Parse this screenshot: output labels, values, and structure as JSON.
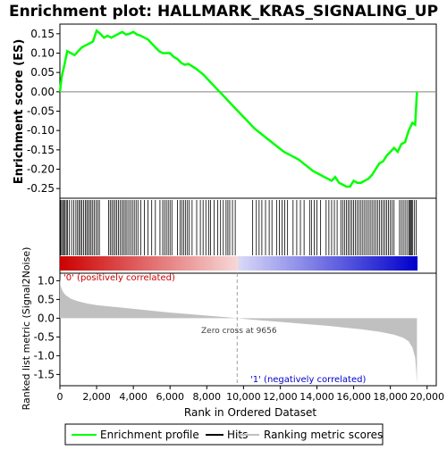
{
  "chart_data": {
    "type": "line",
    "title": "Enrichment plot: HALLMARK_KRAS_SIGNALING_UP",
    "panels": {
      "es": {
        "ylabel": "Enrichment score (ES)",
        "ylim": [
          -0.275,
          0.175
        ],
        "yticks": [
          "0.15",
          "0.10",
          "0.05",
          "0.00",
          "-0.05",
          "-0.10",
          "-0.15",
          "-0.20",
          "-0.25"
        ],
        "ytick_values": [
          0.15,
          0.1,
          0.05,
          0.0,
          -0.05,
          -0.1,
          -0.15,
          -0.2,
          -0.25
        ],
        "series": {
          "name": "Enrichment profile",
          "color": "#00ff00",
          "x": [
            0,
            100,
            250,
            400,
            600,
            800,
            1000,
            1200,
            1400,
            1600,
            1800,
            2000,
            2200,
            2400,
            2600,
            2800,
            3000,
            3200,
            3400,
            3600,
            3800,
            4000,
            4200,
            4400,
            4600,
            4800,
            5000,
            5200,
            5400,
            5600,
            5800,
            6000,
            6200,
            6400,
            6600,
            6800,
            7000,
            7400,
            7800,
            8200,
            8600,
            9000,
            9400,
            9800,
            10200,
            10600,
            11000,
            11400,
            11800,
            12200,
            12600,
            13000,
            13400,
            13800,
            14000,
            14200,
            14400,
            14600,
            14800,
            15000,
            15200,
            15400,
            15600,
            15800,
            16000,
            16200,
            16400,
            16600,
            16800,
            17000,
            17200,
            17400,
            17600,
            17800,
            18000,
            18200,
            18400,
            18600,
            18800,
            19000,
            19200,
            19350,
            19450
          ],
          "y": [
            0.0,
            0.04,
            0.07,
            0.105,
            0.1,
            0.095,
            0.105,
            0.115,
            0.12,
            0.125,
            0.13,
            0.158,
            0.15,
            0.14,
            0.145,
            0.14,
            0.145,
            0.15,
            0.155,
            0.148,
            0.15,
            0.155,
            0.148,
            0.145,
            0.14,
            0.135,
            0.125,
            0.115,
            0.105,
            0.1,
            0.1,
            0.1,
            0.09,
            0.085,
            0.075,
            0.07,
            0.072,
            0.06,
            0.045,
            0.025,
            0.005,
            -0.015,
            -0.035,
            -0.055,
            -0.075,
            -0.095,
            -0.11,
            -0.125,
            -0.14,
            -0.155,
            -0.165,
            -0.175,
            -0.19,
            -0.205,
            -0.21,
            -0.215,
            -0.22,
            -0.225,
            -0.23,
            -0.22,
            -0.235,
            -0.24,
            -0.245,
            -0.245,
            -0.23,
            -0.235,
            -0.235,
            -0.23,
            -0.225,
            -0.215,
            -0.2,
            -0.185,
            -0.18,
            -0.165,
            -0.155,
            -0.145,
            -0.155,
            -0.135,
            -0.13,
            -0.1,
            -0.08,
            -0.085,
            0.0
          ]
        }
      },
      "hits": {
        "name": "Hits",
        "positions": [
          30,
          90,
          150,
          210,
          280,
          350,
          420,
          520,
          640,
          760,
          870,
          960,
          1040,
          1120,
          1200,
          1290,
          1380,
          1460,
          1540,
          1620,
          1700,
          1790,
          1880,
          1970,
          2060,
          2150,
          2650,
          2740,
          2830,
          2920,
          3010,
          3100,
          3190,
          3280,
          3380,
          3470,
          3560,
          3650,
          3750,
          3850,
          3950,
          4050,
          4150,
          4250,
          4400,
          4600,
          4800,
          5000,
          5200,
          5450,
          5600,
          5700,
          5800,
          5900,
          6000,
          6100,
          6400,
          6550,
          6650,
          6750,
          6850,
          6950,
          7050,
          7200,
          7450,
          7650,
          7800,
          7950,
          8100,
          8200,
          8400,
          8600,
          8750,
          8900,
          9050,
          9150,
          9250,
          9400,
          9550,
          10500,
          10700,
          10850,
          11000,
          11200,
          11400,
          11550,
          11800,
          11950,
          12100,
          12250,
          12400,
          12700,
          12900,
          13100,
          13300,
          13600,
          13700,
          13850,
          14000,
          14200,
          14500,
          14650,
          14800,
          14950,
          15100,
          15300,
          15400,
          15500,
          15600,
          15700,
          15800,
          15900,
          16000,
          16100,
          16200,
          16300,
          16400,
          16500,
          16600,
          16700,
          16800,
          16900,
          17000,
          17100,
          17200,
          17300,
          17400,
          17500,
          17600,
          17700,
          17800,
          17900,
          18000,
          18100,
          18200,
          18500,
          18600,
          18700,
          18800,
          18900,
          19000,
          19050,
          19100,
          19150,
          19200,
          19300,
          19400
        ]
      },
      "ranked": {
        "ylabel": "Ranked list metric (Signal2Noise)",
        "ylim": [
          -1.8,
          1.2
        ],
        "yticks": [
          "1.0",
          "0.5",
          "0.0",
          "-0.5",
          "-1.0",
          "-1.5"
        ],
        "ytick_values": [
          1.0,
          0.5,
          0.0,
          -0.5,
          -1.0,
          -1.5
        ],
        "series": {
          "name": "Ranking metric scores",
          "color": "#c0c0c0",
          "x": [
            0,
            50,
            150,
            300,
            600,
            1000,
            1500,
            2000,
            3000,
            4000,
            5000,
            6000,
            7000,
            8000,
            9000,
            9656,
            10500,
            11500,
            12500,
            13500,
            14500,
            15500,
            16500,
            17500,
            18200,
            18700,
            19000,
            19200,
            19350,
            19400,
            19450
          ],
          "y": [
            1.05,
            0.85,
            0.72,
            0.62,
            0.52,
            0.45,
            0.39,
            0.35,
            0.3,
            0.25,
            0.2,
            0.15,
            0.11,
            0.07,
            0.03,
            0.0,
            -0.04,
            -0.08,
            -0.12,
            -0.16,
            -0.2,
            -0.25,
            -0.3,
            -0.37,
            -0.44,
            -0.52,
            -0.62,
            -0.78,
            -1.05,
            -1.35,
            -1.75
          ]
        },
        "annotations": {
          "positive": "'0' (positively correlated)",
          "negative": "'1' (negatively correlated)",
          "zero_cross": "Zero cross at 9656",
          "zero_cross_x": 9656
        },
        "positive_color": "#cc0000",
        "negative_color": "#0000cc"
      }
    },
    "xaxis": {
      "label": "Rank in Ordered Dataset",
      "xlim": [
        0,
        20500
      ],
      "ticks": [
        "0",
        "2,000",
        "4,000",
        "6,000",
        "8,000",
        "10,000",
        "12,000",
        "14,000",
        "16,000",
        "18,000",
        "20,000"
      ],
      "tick_values": [
        0,
        2000,
        4000,
        6000,
        8000,
        10000,
        12000,
        14000,
        16000,
        18000,
        20000
      ],
      "n_genes": 19450
    },
    "legend": {
      "position": "bottom",
      "items": [
        {
          "label": "Enrichment profile",
          "color": "#00ff00"
        },
        {
          "label": "Hits",
          "color": "#000000"
        },
        {
          "label": "Ranking metric scores",
          "color": "#c0c0c0"
        }
      ]
    }
  }
}
